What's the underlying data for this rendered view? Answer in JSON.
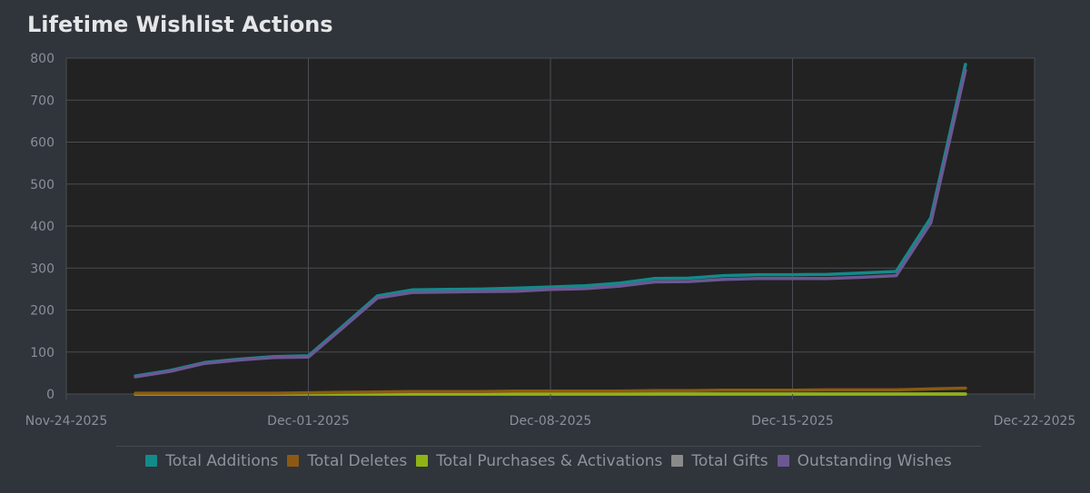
{
  "title": "Lifetime Wishlist Actions",
  "colors": {
    "page_bg": "#30343b",
    "plot_bg": "#222222",
    "grid": "#4a4d52",
    "axis_text": "#8a9099"
  },
  "chart_data": {
    "type": "line",
    "title": "Lifetime Wishlist Actions",
    "xlabel": "",
    "ylabel": "",
    "x_type": "date",
    "xlim": [
      "2025-11-24",
      "2025-12-22"
    ],
    "ylim": [
      0,
      800
    ],
    "x_ticks": [
      "Nov-24-2025",
      "Dec-01-2025",
      "Dec-08-2025",
      "Dec-15-2025",
      "Dec-22-2025"
    ],
    "y_ticks": [
      0,
      100,
      200,
      300,
      400,
      500,
      600,
      700,
      800
    ],
    "grid": true,
    "legend_position": "bottom",
    "x": [
      "2025-11-26",
      "2025-11-27",
      "2025-11-28",
      "2025-11-29",
      "2025-11-30",
      "2025-12-01",
      "2025-12-02",
      "2025-12-03",
      "2025-12-04",
      "2025-12-05",
      "2025-12-06",
      "2025-12-07",
      "2025-12-08",
      "2025-12-09",
      "2025-12-10",
      "2025-12-11",
      "2025-12-12",
      "2025-12-13",
      "2025-12-14",
      "2025-12-15",
      "2025-12-16",
      "2025-12-17",
      "2025-12-18",
      "2025-12-19",
      "2025-12-20"
    ],
    "series": [
      {
        "name": "Total Additions",
        "color": "#138a8a",
        "values": [
          43,
          56,
          75,
          83,
          89,
          91,
          162,
          234,
          248,
          249,
          250,
          252,
          255,
          258,
          264,
          275,
          276,
          282,
          284,
          284,
          285,
          288,
          292,
          420,
          785
        ]
      },
      {
        "name": "Total Deletes",
        "color": "#8a5a14",
        "values": [
          2,
          2,
          2,
          2,
          2,
          3,
          4,
          5,
          6,
          6,
          6,
          7,
          7,
          7,
          7,
          8,
          8,
          9,
          9,
          9,
          10,
          10,
          10,
          12,
          14
        ]
      },
      {
        "name": "Total Purchases & Activations",
        "color": "#8fb415",
        "values": [
          0,
          0,
          0,
          0,
          0,
          0,
          0,
          0,
          0,
          0,
          0,
          0,
          0,
          0,
          0,
          0,
          0,
          0,
          0,
          0,
          0,
          0,
          0,
          0,
          0
        ]
      },
      {
        "name": "Total Gifts",
        "color": "#8a8a8a",
        "values": [
          0,
          0,
          0,
          0,
          0,
          0,
          0,
          0,
          0,
          0,
          0,
          0,
          0,
          0,
          0,
          0,
          0,
          0,
          0,
          0,
          0,
          0,
          0,
          0,
          0
        ]
      },
      {
        "name": "Outstanding Wishes",
        "color": "#6a5893",
        "values": [
          41,
          54,
          73,
          81,
          87,
          88,
          158,
          229,
          242,
          243,
          244,
          245,
          249,
          251,
          257,
          267,
          268,
          273,
          275,
          275,
          275,
          278,
          282,
          408,
          771
        ]
      }
    ]
  }
}
